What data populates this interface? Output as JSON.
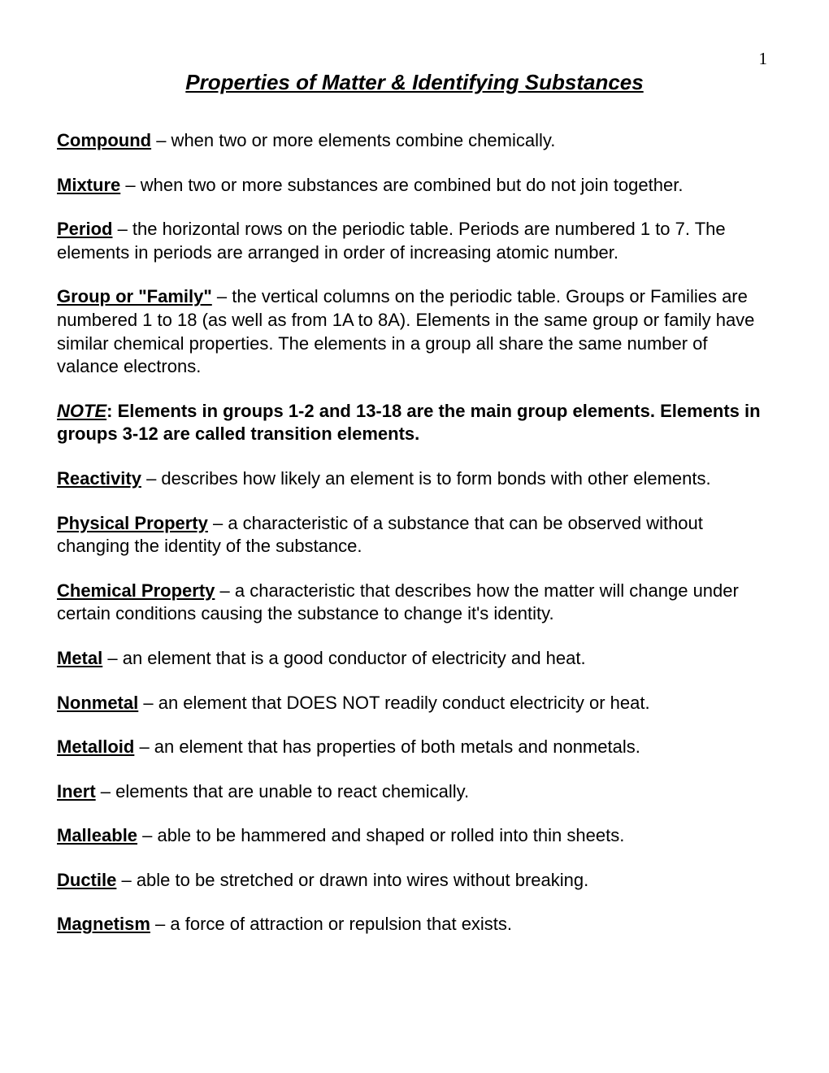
{
  "page_number": "1",
  "title": "Properties of Matter & Identifying Substances",
  "definitions": [
    {
      "term": "Compound",
      "text": " – when two or more elements combine chemically."
    },
    {
      "term": "Mixture",
      "text": " – when two or more substances are combined but do not join together."
    },
    {
      "term": "Period",
      "text": " – the horizontal rows on the periodic table.  Periods are numbered 1 to 7.  The elements in periods are arranged in order of increasing atomic number."
    },
    {
      "term": "Group or \"Family\"",
      "text": " – the vertical columns on the periodic table.  Groups or Families are numbered 1 to 18 (as well as from 1A to 8A).  Elements in the same group or family have similar chemical properties.  The elements in a group all share the same number of valance electrons."
    }
  ],
  "note": {
    "label": "NOTE",
    "body": ":  Elements in groups 1-2 and 13-18 are the main group elements.  Elements in groups 3-12 are called transition elements."
  },
  "definitions2": [
    {
      "term": "Reactivity",
      "text": " – describes how likely an element is to form bonds with other elements."
    },
    {
      "term": "Physical Property",
      "text": " – a characteristic of a substance that can be observed without changing the identity of the substance."
    },
    {
      "term": "Chemical Property",
      "text": " – a characteristic that describes how the matter will change under certain conditions causing the substance to change it's identity."
    },
    {
      "term": "Metal",
      "text": " – an element that is a good conductor of electricity and heat."
    },
    {
      "term": "Nonmetal",
      "text": " – an element that DOES NOT readily conduct electricity or heat."
    },
    {
      "term": "Metalloid",
      "text": " – an element that has properties of both metals and nonmetals."
    },
    {
      "term": "Inert",
      "text": " – elements that are unable to react chemically."
    },
    {
      "term": "Malleable",
      "text": " – able to be hammered and shaped or rolled into thin sheets."
    },
    {
      "term": "Ductile",
      "text": " – able to be stretched or drawn into wires without breaking."
    },
    {
      "term": "Magnetism",
      "text": " – a force of attraction or repulsion that exists."
    }
  ]
}
